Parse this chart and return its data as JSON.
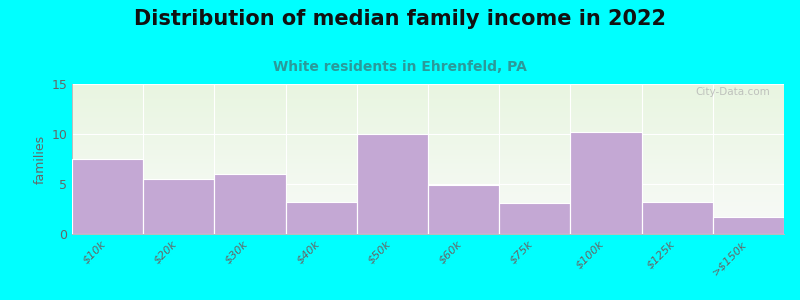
{
  "title": "Distribution of median family income in 2022",
  "subtitle": "White residents in Ehrenfeld, PA",
  "categories": [
    "$10k",
    "$20k",
    "$30k",
    "$40k",
    "$50k",
    "$60k",
    "$75k",
    "$100k",
    "$125k",
    ">$150k"
  ],
  "values": [
    7.5,
    5.5,
    6.0,
    3.2,
    10.0,
    4.9,
    3.1,
    10.2,
    3.2,
    1.7
  ],
  "bar_color": "#c4a8d4",
  "background_outer": "#00ffff",
  "background_inner_top": "#e8f5e0",
  "background_inner_bottom": "#f8faf8",
  "ylabel": "families",
  "ylim": [
    0,
    15
  ],
  "yticks": [
    0,
    5,
    10,
    15
  ],
  "title_fontsize": 15,
  "subtitle_fontsize": 10,
  "subtitle_color": "#2a9a9a",
  "watermark": "City-Data.com",
  "title_fontweight": "bold",
  "tick_color": "#666666",
  "tick_fontsize": 8
}
